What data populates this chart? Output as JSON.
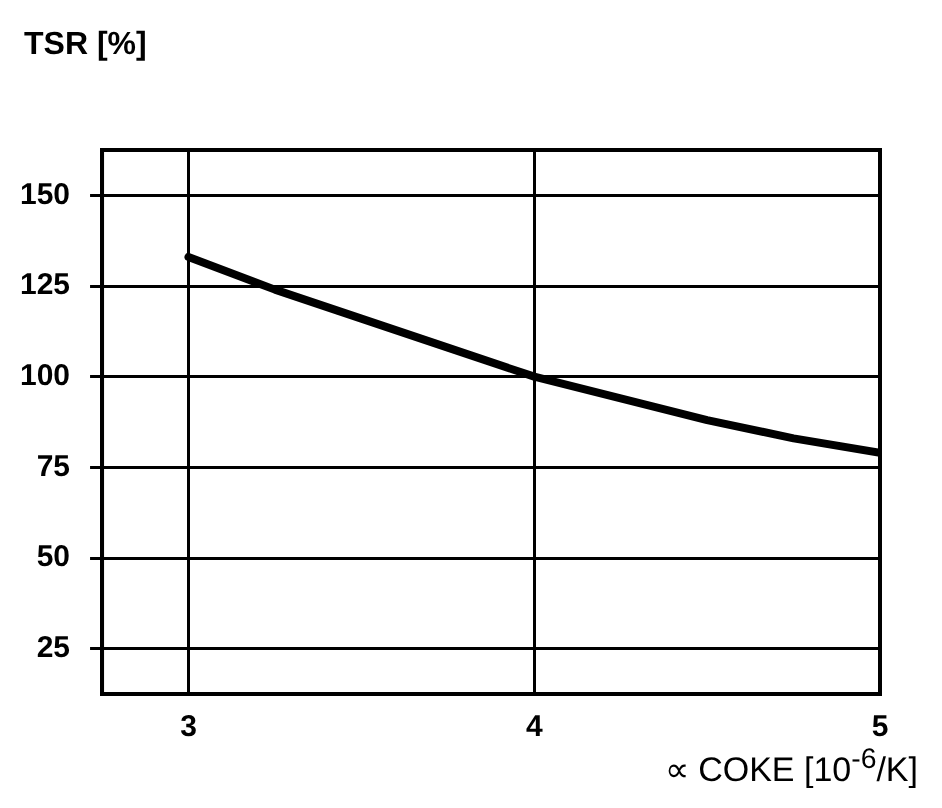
{
  "chart_data": {
    "type": "line",
    "xlabel": "∝ COKE [10$^{-6}$/K]",
    "ylabel": "TSR [%]",
    "x": [
      3,
      3.25,
      3.5,
      3.75,
      4,
      4.25,
      4.5,
      4.75,
      5
    ],
    "series": [
      {
        "color": "#000000",
        "values": [
          133,
          124,
          116,
          108,
          100,
          94,
          88,
          83,
          79
        ]
      }
    ],
    "xlim": [
      2.75,
      5
    ],
    "xticks": [
      3,
      4,
      5
    ],
    "ylim": [
      12.5,
      162.5
    ],
    "yticks": [
      25,
      50,
      75,
      100,
      125,
      150
    ],
    "grid": true,
    "legend": false,
    "marker": "none",
    "line_style": "solid"
  }
}
